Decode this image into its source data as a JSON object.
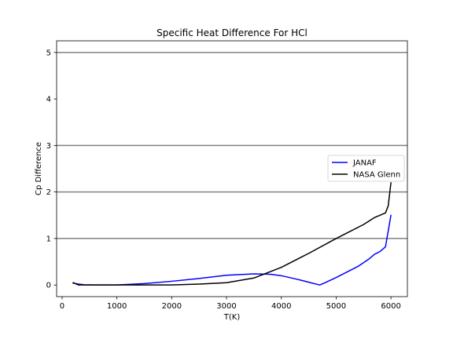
{
  "chart_data": {
    "type": "line",
    "title": "Specific Heat Difference For HCl",
    "xlabel": "T(K)",
    "ylabel": "Cp Difference",
    "xlim": [
      -100,
      6300
    ],
    "ylim": [
      -0.25,
      5.25
    ],
    "xticks": [
      0,
      1000,
      2000,
      3000,
      4000,
      5000,
      6000
    ],
    "yticks": [
      0,
      1,
      2,
      3,
      4,
      5
    ],
    "xtick_labels": [
      "0",
      "1000",
      "2000",
      "3000",
      "4000",
      "5000",
      "6000"
    ],
    "ytick_labels": [
      "0",
      "1",
      "2",
      "3",
      "4",
      "5"
    ],
    "hlines": [
      1,
      2,
      3,
      5
    ],
    "hline_color": "#808080",
    "legend_position": "center-right",
    "series": [
      {
        "name": "JANAF",
        "color": "#0000ff",
        "x": [
          200,
          300,
          400,
          600,
          800,
          1000,
          1500,
          2000,
          2500,
          3000,
          3500,
          3800,
          4000,
          4300,
          4500,
          4700,
          4800,
          5000,
          5200,
          5400,
          5600,
          5700,
          5800,
          5900,
          6000
        ],
        "y": [
          0.04,
          0.02,
          0.005,
          0.0,
          0.0,
          0.0,
          0.03,
          0.08,
          0.14,
          0.21,
          0.24,
          0.23,
          0.2,
          0.12,
          0.06,
          0.0,
          0.05,
          0.16,
          0.28,
          0.4,
          0.56,
          0.66,
          0.72,
          0.82,
          1.5
        ]
      },
      {
        "name": "NASA Glenn",
        "color": "#000000",
        "x": [
          200,
          300,
          400,
          600,
          800,
          1000,
          1500,
          2000,
          2500,
          3000,
          3500,
          4000,
          4500,
          5000,
          5200,
          5500,
          5700,
          5800,
          5900,
          5950,
          6000
        ],
        "y": [
          0.05,
          0.0,
          0.0,
          0.0,
          0.0,
          0.0,
          0.0,
          0.0,
          0.02,
          0.05,
          0.15,
          0.38,
          0.68,
          1.0,
          1.12,
          1.3,
          1.45,
          1.5,
          1.55,
          1.7,
          2.2
        ]
      }
    ]
  }
}
